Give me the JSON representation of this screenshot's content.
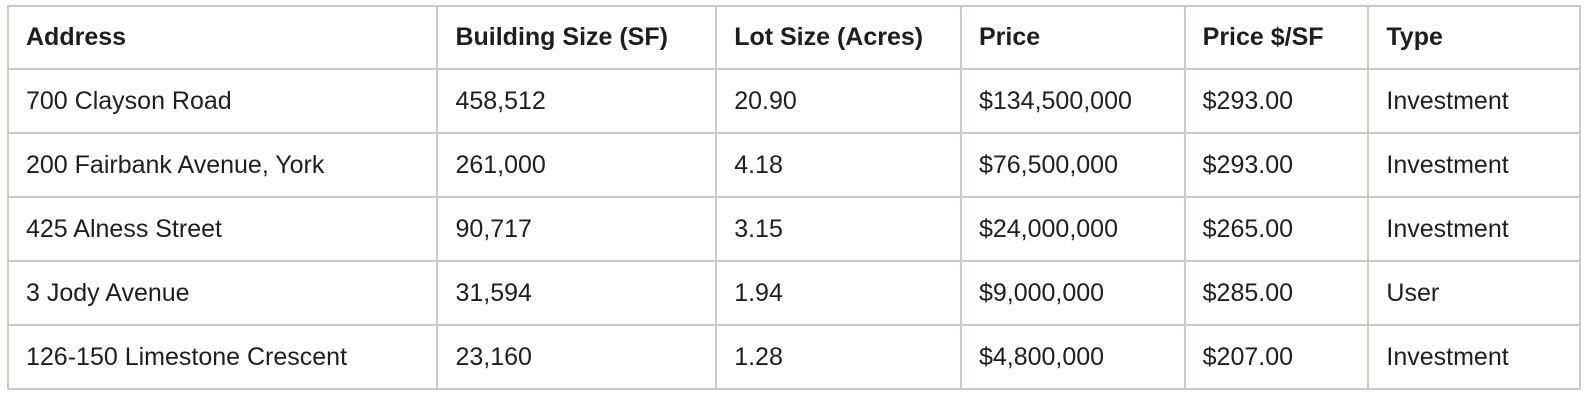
{
  "table": {
    "headers": [
      "Address",
      "Building Size (SF)",
      "Lot Size (Acres)",
      "Price",
      "Price $/SF",
      "Type"
    ],
    "rows": [
      [
        "700 Clayson Road",
        "458,512",
        "20.90",
        "$134,500,000",
        "$293.00",
        "Investment"
      ],
      [
        "200 Fairbank Avenue, York",
        "261,000",
        "4.18",
        "$76,500,000",
        "$293.00",
        "Investment"
      ],
      [
        "425 Alness Street",
        "90,717",
        "3.15",
        "$24,000,000",
        "$265.00",
        "Investment"
      ],
      [
        "3 Jody Avenue",
        "31,594",
        "1.94",
        "$9,000,000",
        "$285.00",
        "User"
      ],
      [
        "126-150 Limestone Crescent",
        "23,160",
        "1.28",
        "$4,800,000",
        "$207.00",
        "Investment"
      ]
    ]
  }
}
